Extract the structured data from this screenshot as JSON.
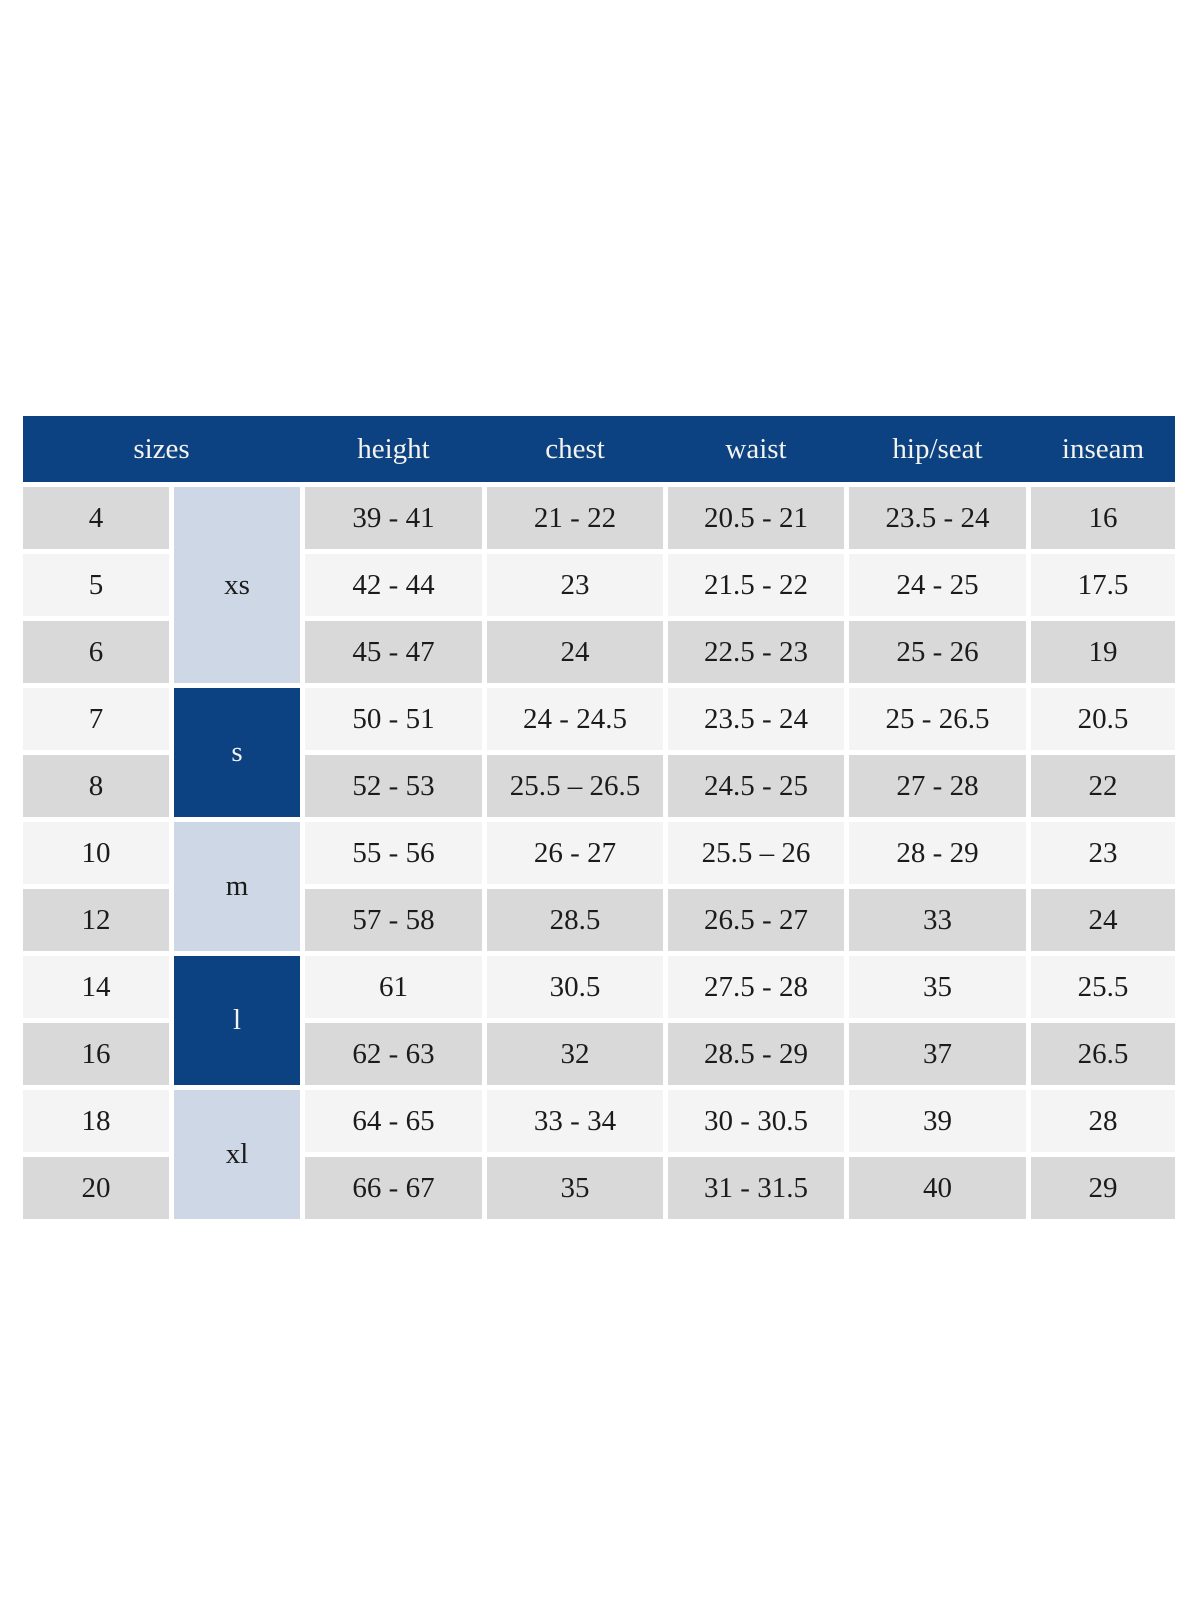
{
  "colors": {
    "header_navy": "#0c4182",
    "group_dark_navy": "#0c4182",
    "group_light_blue": "#cdd7e6",
    "row_gray": "#d9d9d9",
    "row_light": "#f4f4f5",
    "header_text": "#f4f3ee",
    "body_text": "#1b1b1b",
    "page_background": "#ffffff"
  },
  "table": {
    "headers": {
      "sizes": "sizes",
      "height": "height",
      "chest": "chest",
      "waist": "waist",
      "hip_seat": "hip/seat",
      "inseam": "inseam"
    },
    "groups": [
      {
        "label": "xs",
        "span": 3,
        "tone": "light"
      },
      {
        "label": "s",
        "span": 2,
        "tone": "dark"
      },
      {
        "label": "m",
        "span": 2,
        "tone": "light"
      },
      {
        "label": "l",
        "span": 2,
        "tone": "dark"
      },
      {
        "label": "xl",
        "span": 2,
        "tone": "light"
      }
    ],
    "rows": [
      {
        "size": "4",
        "height": "39 - 41",
        "chest": "21 - 22",
        "waist": "20.5 - 21",
        "hip_seat": "23.5 - 24",
        "inseam": "16"
      },
      {
        "size": "5",
        "height": "42 - 44",
        "chest": "23",
        "waist": "21.5 - 22",
        "hip_seat": "24 - 25",
        "inseam": "17.5"
      },
      {
        "size": "6",
        "height": "45 - 47",
        "chest": "24",
        "waist": "22.5 - 23",
        "hip_seat": "25 - 26",
        "inseam": "19"
      },
      {
        "size": "7",
        "height": "50 - 51",
        "chest": "24 - 24.5",
        "waist": "23.5 - 24",
        "hip_seat": "25 - 26.5",
        "inseam": "20.5"
      },
      {
        "size": "8",
        "height": "52 - 53",
        "chest": "25.5 – 26.5",
        "waist": "24.5 - 25",
        "hip_seat": "27 - 28",
        "inseam": "22"
      },
      {
        "size": "10",
        "height": "55 - 56",
        "chest": "26 - 27",
        "waist": "25.5 – 26",
        "hip_seat": "28 - 29",
        "inseam": "23"
      },
      {
        "size": "12",
        "height": "57 - 58",
        "chest": "28.5",
        "waist": "26.5 - 27",
        "hip_seat": "33",
        "inseam": "24"
      },
      {
        "size": "14",
        "height": "61",
        "chest": "30.5",
        "waist": "27.5 - 28",
        "hip_seat": "35",
        "inseam": "25.5"
      },
      {
        "size": "16",
        "height": "62 - 63",
        "chest": "32",
        "waist": "28.5 - 29",
        "hip_seat": "37",
        "inseam": "26.5"
      },
      {
        "size": "18",
        "height": "64 - 65",
        "chest": "33 - 34",
        "waist": "30 - 30.5",
        "hip_seat": "39",
        "inseam": "28"
      },
      {
        "size": "20",
        "height": "66 - 67",
        "chest": "35",
        "waist": "31 - 31.5",
        "hip_seat": "40",
        "inseam": "29"
      }
    ]
  }
}
